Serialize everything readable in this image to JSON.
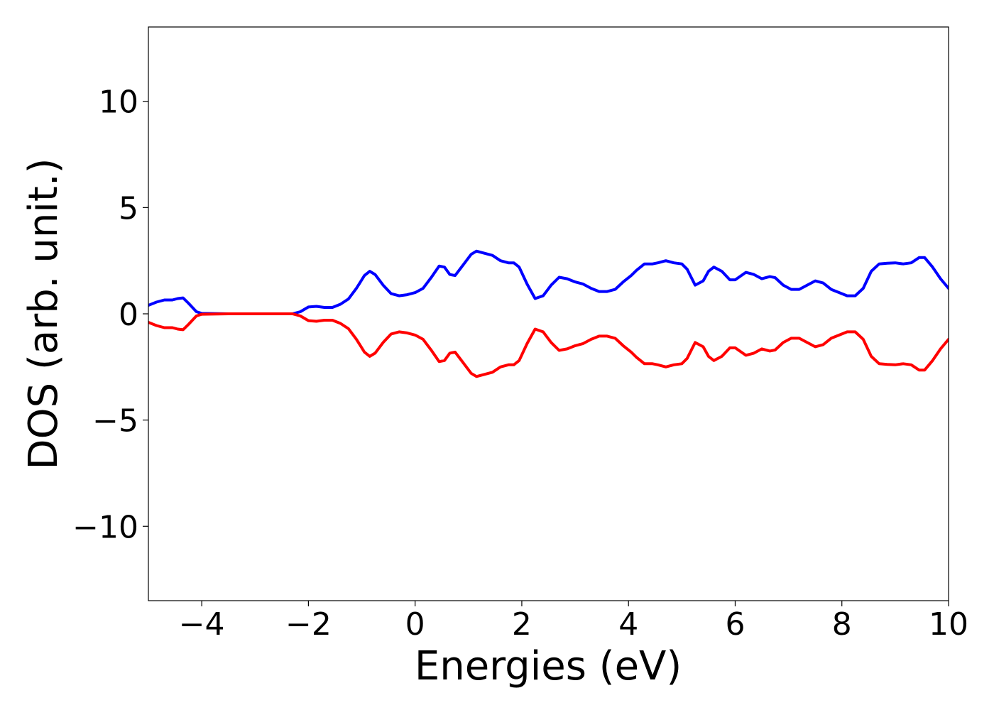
{
  "chart_data": {
    "type": "line",
    "title": "",
    "xlabel": "Energies (eV)",
    "ylabel": "DOS (arb. unit.)",
    "xlim": [
      -5,
      10
    ],
    "ylim": [
      -13.5,
      13.5
    ],
    "xticks": [
      -4,
      -2,
      0,
      2,
      4,
      6,
      8,
      10
    ],
    "xtick_labels": [
      "−4",
      "−2",
      "0",
      "2",
      "4",
      "6",
      "8",
      "10"
    ],
    "yticks": [
      -10,
      -5,
      0,
      5,
      10
    ],
    "ytick_labels": [
      "−10",
      "−5",
      "0",
      "5",
      "10"
    ],
    "grid": false,
    "legend": false,
    "series": [
      {
        "color": "#0000ff",
        "x": [
          -5.0,
          -4.85,
          -4.7,
          -4.55,
          -4.45,
          -4.35,
          -4.25,
          -4.1,
          -4.0,
          -3.5,
          -3.0,
          -2.5,
          -2.3,
          -2.15,
          -2.0,
          -1.85,
          -1.7,
          -1.55,
          -1.4,
          -1.25,
          -1.1,
          -0.95,
          -0.85,
          -0.75,
          -0.6,
          -0.45,
          -0.3,
          -0.15,
          0.0,
          0.15,
          0.3,
          0.45,
          0.55,
          0.65,
          0.75,
          0.9,
          1.05,
          1.15,
          1.3,
          1.45,
          1.6,
          1.75,
          1.85,
          1.95,
          2.1,
          2.25,
          2.4,
          2.55,
          2.7,
          2.85,
          3.0,
          3.15,
          3.3,
          3.45,
          3.6,
          3.75,
          3.9,
          4.05,
          4.15,
          4.3,
          4.45,
          4.55,
          4.7,
          4.85,
          5.0,
          5.1,
          5.25,
          5.4,
          5.5,
          5.6,
          5.75,
          5.9,
          6.0,
          6.2,
          6.35,
          6.5,
          6.65,
          6.75,
          6.9,
          7.05,
          7.2,
          7.35,
          7.5,
          7.65,
          7.8,
          7.95,
          8.1,
          8.25,
          8.4,
          8.55,
          8.7,
          8.85,
          9.0,
          9.15,
          9.3,
          9.45,
          9.55,
          9.7,
          9.85,
          10.0
        ],
        "y": [
          0.4,
          0.55,
          0.65,
          0.65,
          0.72,
          0.75,
          0.5,
          0.1,
          0.02,
          0.0,
          0.0,
          0.0,
          0.0,
          0.1,
          0.32,
          0.35,
          0.3,
          0.3,
          0.45,
          0.7,
          1.2,
          1.8,
          2.0,
          1.85,
          1.35,
          0.95,
          0.85,
          0.9,
          1.0,
          1.2,
          1.7,
          2.25,
          2.2,
          1.85,
          1.8,
          2.3,
          2.8,
          2.95,
          2.85,
          2.75,
          2.5,
          2.4,
          2.4,
          2.2,
          1.4,
          0.72,
          0.85,
          1.35,
          1.72,
          1.65,
          1.5,
          1.4,
          1.2,
          1.05,
          1.05,
          1.15,
          1.5,
          1.8,
          2.05,
          2.35,
          2.35,
          2.4,
          2.5,
          2.4,
          2.35,
          2.1,
          1.35,
          1.55,
          2.0,
          2.2,
          2.0,
          1.6,
          1.6,
          1.95,
          1.85,
          1.65,
          1.75,
          1.7,
          1.35,
          1.15,
          1.15,
          1.35,
          1.55,
          1.45,
          1.15,
          1.0,
          0.85,
          0.85,
          1.2,
          2.0,
          2.35,
          2.38,
          2.4,
          2.35,
          2.4,
          2.65,
          2.65,
          2.2,
          1.65,
          1.2
        ]
      },
      {
        "color": "#ff0000",
        "x": [
          -5.0,
          -4.85,
          -4.7,
          -4.55,
          -4.45,
          -4.35,
          -4.25,
          -4.1,
          -4.0,
          -3.5,
          -3.0,
          -2.5,
          -2.3,
          -2.15,
          -2.0,
          -1.85,
          -1.7,
          -1.55,
          -1.4,
          -1.25,
          -1.1,
          -0.95,
          -0.85,
          -0.75,
          -0.6,
          -0.45,
          -0.3,
          -0.15,
          0.0,
          0.15,
          0.3,
          0.45,
          0.55,
          0.65,
          0.75,
          0.9,
          1.05,
          1.15,
          1.3,
          1.45,
          1.6,
          1.75,
          1.85,
          1.95,
          2.1,
          2.25,
          2.4,
          2.55,
          2.7,
          2.85,
          3.0,
          3.15,
          3.3,
          3.45,
          3.6,
          3.75,
          3.9,
          4.05,
          4.15,
          4.3,
          4.45,
          4.55,
          4.7,
          4.85,
          5.0,
          5.1,
          5.25,
          5.4,
          5.5,
          5.6,
          5.75,
          5.9,
          6.0,
          6.2,
          6.35,
          6.5,
          6.65,
          6.75,
          6.9,
          7.05,
          7.2,
          7.35,
          7.5,
          7.65,
          7.8,
          7.95,
          8.1,
          8.25,
          8.4,
          8.55,
          8.7,
          8.85,
          9.0,
          9.15,
          9.3,
          9.45,
          9.55,
          9.7,
          9.85,
          10.0
        ],
        "y": [
          -0.4,
          -0.55,
          -0.65,
          -0.65,
          -0.72,
          -0.75,
          -0.5,
          -0.1,
          -0.02,
          0.0,
          0.0,
          0.0,
          0.0,
          -0.1,
          -0.32,
          -0.35,
          -0.3,
          -0.3,
          -0.45,
          -0.7,
          -1.2,
          -1.8,
          -2.0,
          -1.85,
          -1.35,
          -0.95,
          -0.85,
          -0.9,
          -1.0,
          -1.2,
          -1.7,
          -2.25,
          -2.2,
          -1.85,
          -1.8,
          -2.3,
          -2.8,
          -2.95,
          -2.85,
          -2.75,
          -2.5,
          -2.4,
          -2.4,
          -2.2,
          -1.4,
          -0.72,
          -0.85,
          -1.35,
          -1.72,
          -1.65,
          -1.5,
          -1.4,
          -1.2,
          -1.05,
          -1.05,
          -1.15,
          -1.5,
          -1.8,
          -2.05,
          -2.35,
          -2.35,
          -2.4,
          -2.5,
          -2.4,
          -2.35,
          -2.1,
          -1.35,
          -1.55,
          -2.0,
          -2.2,
          -2.0,
          -1.6,
          -1.6,
          -1.95,
          -1.85,
          -1.65,
          -1.75,
          -1.7,
          -1.35,
          -1.15,
          -1.15,
          -1.35,
          -1.55,
          -1.45,
          -1.15,
          -1.0,
          -0.85,
          -0.85,
          -1.2,
          -2.0,
          -2.35,
          -2.38,
          -2.4,
          -2.35,
          -2.4,
          -2.65,
          -2.65,
          -2.2,
          -1.65,
          -1.2
        ]
      }
    ]
  }
}
